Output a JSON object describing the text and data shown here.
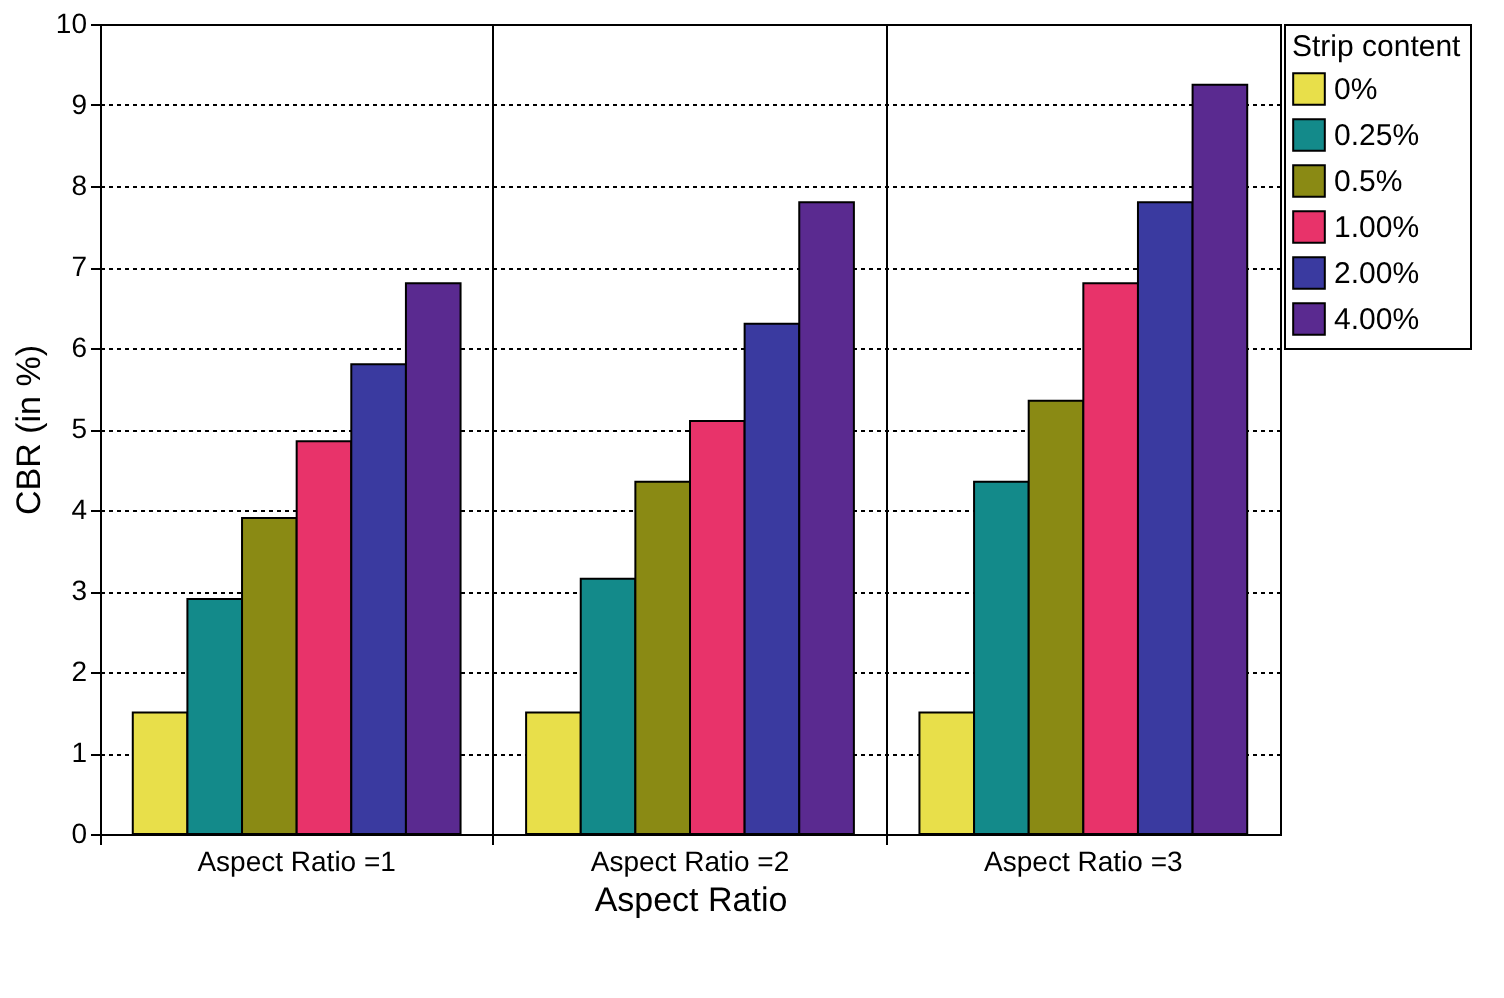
{
  "chart_data": {
    "type": "bar",
    "xlabel": "Aspect Ratio",
    "ylabel": "CBR (in %)",
    "legend_title": "Strip content",
    "categories": [
      "Aspect Ratio =1",
      "Aspect Ratio =2",
      "Aspect Ratio =3"
    ],
    "series": [
      {
        "name": "0%",
        "color": "#e8df4a",
        "values": [
          1.5,
          1.5,
          1.5
        ]
      },
      {
        "name": "0.25%",
        "color": "#138a8a",
        "values": [
          2.9,
          3.15,
          4.35
        ]
      },
      {
        "name": "0.5%",
        "color": "#8a8a14",
        "values": [
          3.9,
          4.35,
          5.35
        ]
      },
      {
        "name": "1.00%",
        "color": "#e8336a",
        "values": [
          4.85,
          5.1,
          6.8
        ]
      },
      {
        "name": "2.00%",
        "color": "#3a3aa0",
        "values": [
          5.8,
          6.3,
          7.8
        ]
      },
      {
        "name": "4.00%",
        "color": "#5a2a90",
        "values": [
          6.8,
          7.8,
          9.25
        ]
      }
    ],
    "ylim": [
      0,
      10
    ],
    "yticks": [
      0,
      1,
      2,
      3,
      4,
      5,
      6,
      7,
      8,
      9,
      10
    ],
    "grid": true,
    "legend": "right"
  }
}
